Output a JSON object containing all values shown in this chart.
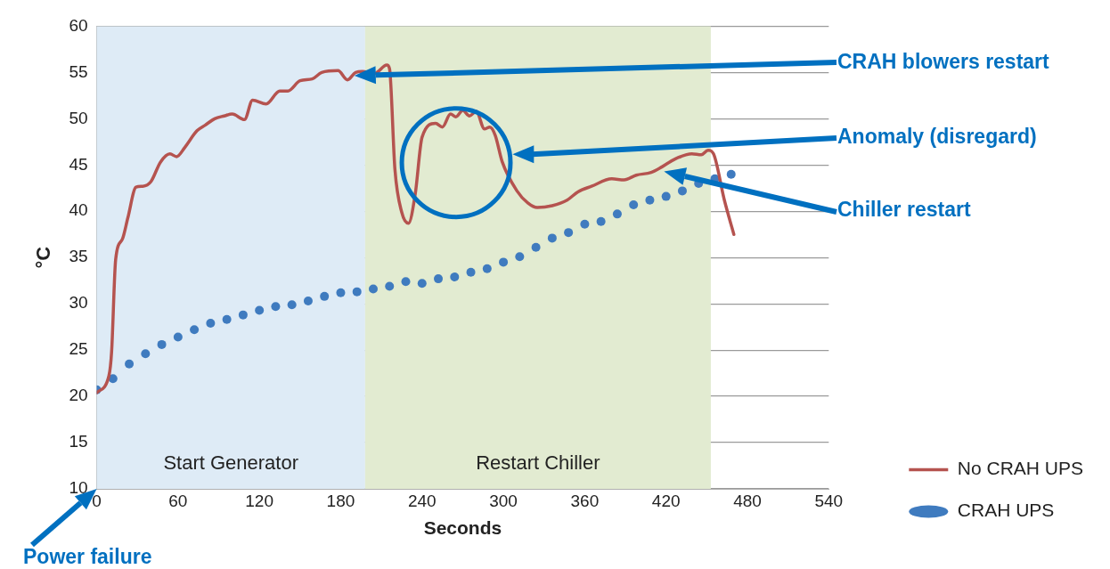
{
  "chart_data": {
    "type": "line",
    "xlabel": "Seconds",
    "ylabel": "°C",
    "xlim": [
      0,
      540
    ],
    "xticks": [
      0,
      60,
      120,
      180,
      240,
      300,
      360,
      420,
      480,
      540
    ],
    "ylim": [
      10,
      60
    ],
    "yticks": [
      10,
      15,
      20,
      25,
      30,
      35,
      40,
      45,
      50,
      55,
      60
    ],
    "grid": "y",
    "legend": "bottom right",
    "series": [
      {
        "name": "No CRAH UPS",
        "type": "line",
        "color": "#b5534f",
        "marker": "none",
        "line_style": "solid",
        "x": [
          0,
          9,
          11,
          14,
          19,
          23,
          29,
          34,
          40,
          47,
          54,
          59,
          65,
          74,
          80,
          87,
          94,
          100,
          109,
          115,
          125,
          135,
          141,
          150,
          159,
          166,
          178,
          185,
          191,
          196,
          205,
          214,
          216,
          220,
          225,
          230,
          235,
          240,
          250,
          255,
          261,
          265,
          270,
          275,
          280,
          286,
          290,
          294,
          299,
          310,
          318,
          325,
          336,
          347,
          355,
          365,
          380,
          389,
          398,
          409,
          417,
          426,
          439,
          446,
          451,
          455,
          463,
          470
        ],
        "values": [
          20.4,
          22.2,
          24.8,
          34.8,
          37.0,
          39.3,
          42.6,
          42.7,
          43.2,
          45.3,
          46.2,
          45.9,
          46.9,
          48.7,
          49.3,
          50.0,
          50.3,
          50.5,
          49.9,
          52.0,
          51.6,
          53.0,
          53.0,
          54.1,
          54.3,
          55.0,
          55.2,
          54.2,
          55.0,
          55.1,
          54.9,
          55.8,
          55.4,
          44.5,
          39.9,
          38.7,
          41.9,
          48.0,
          49.5,
          49.1,
          50.5,
          50.2,
          50.9,
          50.3,
          50.8,
          48.9,
          49.1,
          48.2,
          45.4,
          42.2,
          40.9,
          40.4,
          40.6,
          41.2,
          42.1,
          42.7,
          43.5,
          43.4,
          43.9,
          44.2,
          44.8,
          45.6,
          46.2,
          46.1,
          46.6,
          46.2,
          41.2,
          37.5
        ]
      },
      {
        "name": "CRAH UPS",
        "type": "scatter",
        "color": "#3f7bbf",
        "marker": "circle",
        "x": [
          0,
          12,
          24,
          36,
          48,
          60,
          72,
          84,
          96,
          108,
          120,
          132,
          144,
          156,
          168,
          180,
          192,
          204,
          216,
          228,
          240,
          252,
          264,
          276,
          288,
          300,
          312,
          324,
          336,
          348,
          360,
          372,
          384,
          396,
          408,
          420,
          432,
          444,
          456,
          468
        ],
        "values": [
          20.7,
          21.9,
          23.5,
          24.6,
          25.6,
          26.4,
          27.2,
          27.9,
          28.3,
          28.8,
          29.3,
          29.7,
          29.9,
          30.3,
          30.8,
          31.2,
          31.3,
          31.6,
          31.9,
          32.4,
          32.2,
          32.7,
          32.9,
          33.4,
          33.8,
          34.5,
          35.1,
          36.1,
          37.1,
          37.7,
          38.6,
          38.9,
          39.7,
          40.7,
          41.2,
          41.6,
          42.2,
          43.0,
          43.5,
          44.0
        ]
      }
    ],
    "bands": [
      {
        "axis": "x",
        "from": 0,
        "to": 198,
        "label": "Start Generator",
        "color": "#deebf6"
      },
      {
        "axis": "x",
        "from": 198,
        "to": 453,
        "label": "Restart Chiller",
        "color": "#e2ebd1"
      }
    ],
    "annotations": [
      "CRAH blowers restart",
      "Anomaly (disregard)",
      "Chiller restart",
      "Power failure"
    ]
  }
}
